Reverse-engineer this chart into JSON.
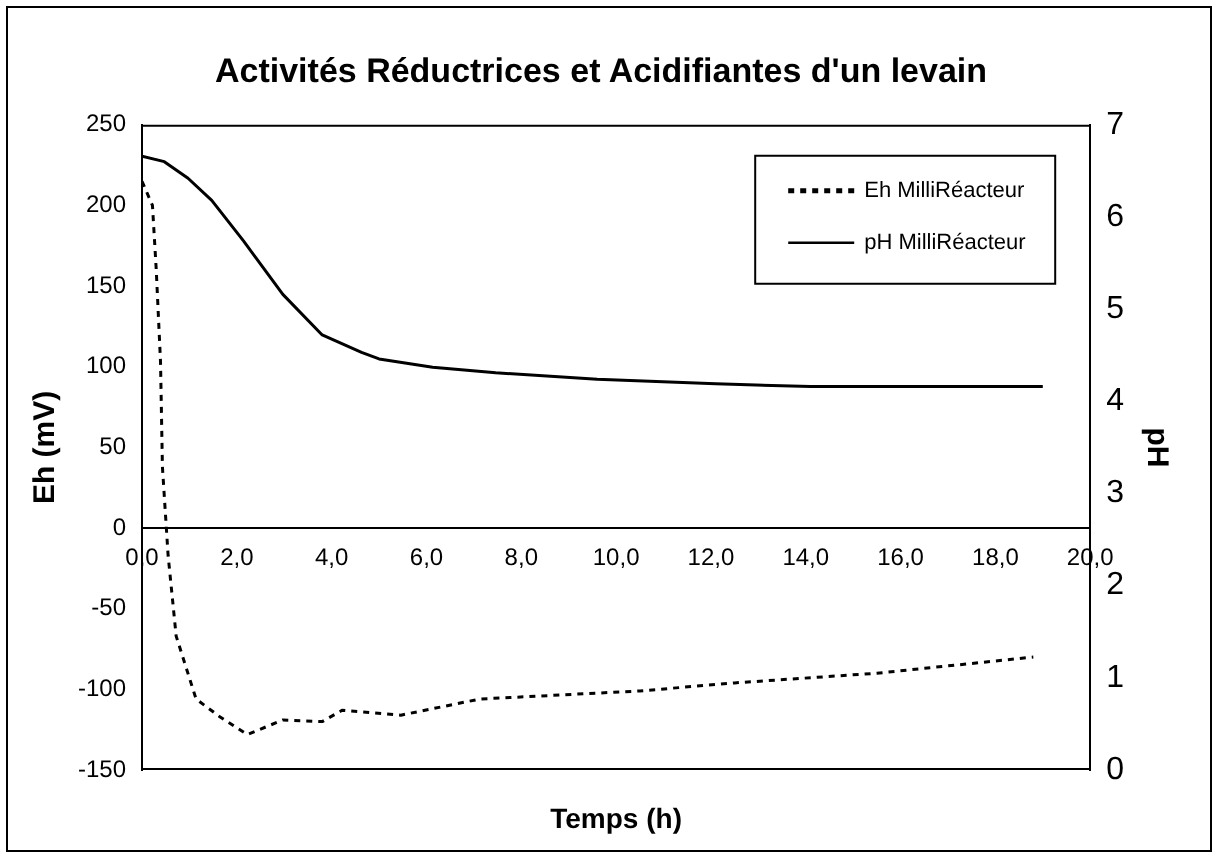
{
  "chart_data": {
    "type": "line",
    "title": "Activités Réductrices et Acidifiantes d'un levain",
    "xlabel": "Temps (h)",
    "ylabel": "Eh (mV)",
    "y2label": "pH",
    "xlim": [
      0,
      20
    ],
    "xticks": [
      {
        "value": 0,
        "label": "0,0"
      },
      {
        "value": 2,
        "label": "2,0"
      },
      {
        "value": 4,
        "label": "4,0"
      },
      {
        "value": 6,
        "label": "6,0"
      },
      {
        "value": 8,
        "label": "8,0"
      },
      {
        "value": 10,
        "label": "10,0"
      },
      {
        "value": 12,
        "label": "12,0"
      },
      {
        "value": 14,
        "label": "14,0"
      },
      {
        "value": 16,
        "label": "16,0"
      },
      {
        "value": 18,
        "label": "18,0"
      },
      {
        "value": 20,
        "label": "20,0"
      }
    ],
    "ylim": [
      -150,
      250
    ],
    "yticks": [
      -150,
      -100,
      -50,
      0,
      50,
      100,
      150,
      200,
      250
    ],
    "y2lim": [
      0,
      7
    ],
    "y2ticks": [
      0,
      1,
      2,
      3,
      4,
      5,
      6,
      7
    ],
    "grid": false,
    "legend": "top right",
    "marker": "none",
    "series": [
      {
        "name": "Eh MilliRéacteur",
        "color": "#000000",
        "line_style": "dotted",
        "x": [
          0,
          0.22,
          0.3,
          0.39,
          0.43,
          0.55,
          0.72,
          1.14,
          1.64,
          2.22,
          2.97,
          3.8,
          4.22,
          5.46,
          7.13,
          10.5,
          12.5,
          15.5,
          18.8
        ],
        "values": [
          215,
          200,
          160,
          103,
          38,
          -17,
          -67,
          -106,
          -117,
          -128,
          -119,
          -120,
          -113,
          -116,
          -106,
          -101,
          -96,
          -90,
          -80
        ]
      },
      {
        "name": "pH MilliRéacteur",
        "color": "#000000",
        "line_style": "solid",
        "axis": "y2",
        "x": [
          0,
          0.47,
          0.97,
          1.47,
          2.14,
          2.97,
          3.8,
          4.63,
          5.0,
          6.13,
          7.46,
          9.6,
          12.1,
          14.1,
          19
        ],
        "values": [
          6.66,
          6.6,
          6.42,
          6.18,
          5.74,
          5.16,
          4.72,
          4.53,
          4.46,
          4.37,
          4.31,
          4.24,
          4.19,
          4.16,
          4.16
        ]
      }
    ]
  }
}
